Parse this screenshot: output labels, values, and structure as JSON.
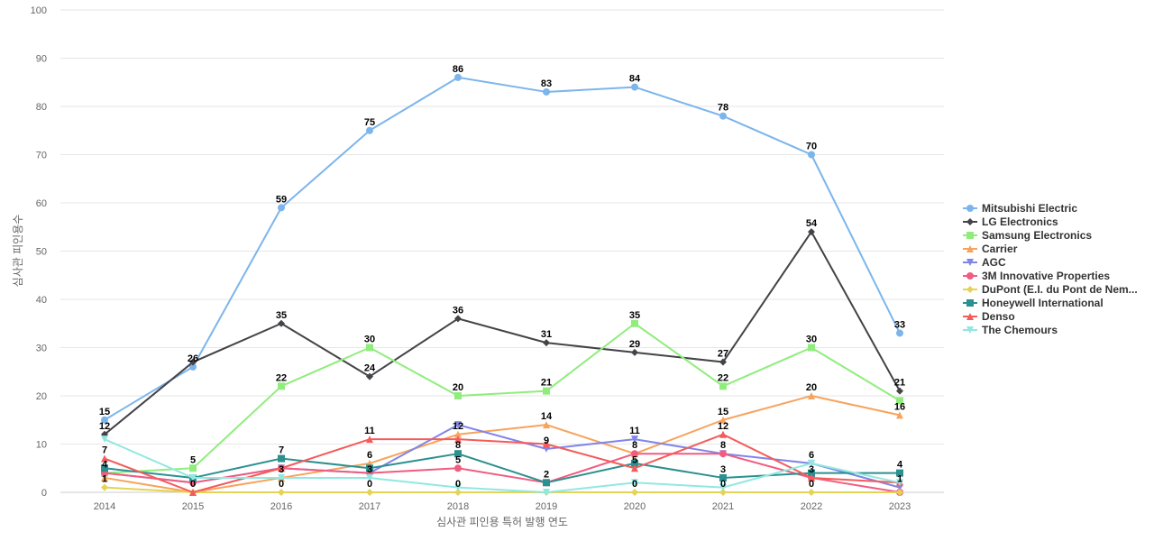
{
  "chart_data": {
    "type": "line",
    "xlabel": "심사관 피인용 특허 발행 연도",
    "ylabel": "심사관 피인용수",
    "categories": [
      "2014",
      "2015",
      "2016",
      "2017",
      "2018",
      "2019",
      "2020",
      "2021",
      "2022",
      "2023"
    ],
    "ylim": [
      0,
      100
    ],
    "yticks": [
      0,
      10,
      20,
      30,
      40,
      50,
      60,
      70,
      80,
      90,
      100
    ],
    "grid": true,
    "legend_position": "right",
    "series": [
      {
        "name": "Mitsubishi Electric",
        "color": "#7cb5ec",
        "marker": "circle",
        "values": [
          15,
          26,
          59,
          75,
          86,
          83,
          84,
          78,
          70,
          33
        ]
      },
      {
        "name": "LG Electronics",
        "color": "#434348",
        "marker": "diamond",
        "values": [
          12,
          27,
          35,
          24,
          36,
          31,
          29,
          27,
          54,
          21
        ]
      },
      {
        "name": "Samsung Electronics",
        "color": "#90ed7d",
        "marker": "square",
        "values": [
          4,
          5,
          22,
          30,
          20,
          21,
          35,
          22,
          30,
          19
        ]
      },
      {
        "name": "Carrier",
        "color": "#f7a35c",
        "marker": "triangle",
        "values": [
          3,
          0,
          3,
          6,
          12,
          14,
          8,
          15,
          20,
          16
        ]
      },
      {
        "name": "AGC",
        "color": "#8085e9",
        "marker": "triangle-down",
        "values": [
          4,
          2,
          5,
          4,
          14,
          9,
          11,
          8,
          6,
          1
        ]
      },
      {
        "name": "3M Innovative Properties",
        "color": "#f15c80",
        "marker": "circle",
        "values": [
          4,
          2,
          5,
          4,
          5,
          2,
          8,
          8,
          3,
          0
        ]
      },
      {
        "name": "DuPont (E.I. du Pont de Nem...",
        "color": "#e4d354",
        "marker": "diamond",
        "values": [
          1,
          0,
          0,
          0,
          0,
          0,
          0,
          0,
          0,
          0
        ]
      },
      {
        "name": "Honeywell International",
        "color": "#2b908f",
        "marker": "square",
        "values": [
          5,
          3,
          7,
          5,
          8,
          2,
          6,
          3,
          4,
          4
        ]
      },
      {
        "name": "Denso",
        "color": "#f45b5b",
        "marker": "triangle",
        "values": [
          7,
          0,
          5,
          11,
          11,
          10,
          5,
          12,
          3,
          2
        ]
      },
      {
        "name": "The Chemours",
        "color": "#91e8e1",
        "marker": "triangle-down",
        "values": [
          11,
          3,
          3,
          3,
          1,
          0,
          2,
          1,
          6,
          2
        ]
      }
    ],
    "data_labels": [
      {
        "x": "2014",
        "y": 15,
        "text": "15"
      },
      {
        "x": "2014",
        "y": 12,
        "text": "12"
      },
      {
        "x": "2014",
        "y": 7,
        "text": "7"
      },
      {
        "x": "2014",
        "y": 4,
        "text": "4"
      },
      {
        "x": "2014",
        "y": 1,
        "text": "1"
      },
      {
        "x": "2015",
        "y": 26,
        "text": "26"
      },
      {
        "x": "2015",
        "y": 5,
        "text": "5"
      },
      {
        "x": "2015",
        "y": 0,
        "text": "0"
      },
      {
        "x": "2016",
        "y": 59,
        "text": "59"
      },
      {
        "x": "2016",
        "y": 35,
        "text": "35"
      },
      {
        "x": "2016",
        "y": 22,
        "text": "22"
      },
      {
        "x": "2016",
        "y": 7,
        "text": "7"
      },
      {
        "x": "2016",
        "y": 3,
        "text": "3"
      },
      {
        "x": "2016",
        "y": 0,
        "text": "0"
      },
      {
        "x": "2017",
        "y": 75,
        "text": "75"
      },
      {
        "x": "2017",
        "y": 30,
        "text": "30"
      },
      {
        "x": "2017",
        "y": 24,
        "text": "24"
      },
      {
        "x": "2017",
        "y": 11,
        "text": "11"
      },
      {
        "x": "2017",
        "y": 6,
        "text": "6"
      },
      {
        "x": "2017",
        "y": 3,
        "text": "3"
      },
      {
        "x": "2017",
        "y": 0,
        "text": "0"
      },
      {
        "x": "2018",
        "y": 86,
        "text": "86"
      },
      {
        "x": "2018",
        "y": 36,
        "text": "36"
      },
      {
        "x": "2018",
        "y": 20,
        "text": "20"
      },
      {
        "x": "2018",
        "y": 12,
        "text": "12"
      },
      {
        "x": "2018",
        "y": 8,
        "text": "8"
      },
      {
        "x": "2018",
        "y": 5,
        "text": "5"
      },
      {
        "x": "2018",
        "y": 0,
        "text": "0"
      },
      {
        "x": "2019",
        "y": 83,
        "text": "83"
      },
      {
        "x": "2019",
        "y": 31,
        "text": "31"
      },
      {
        "x": "2019",
        "y": 21,
        "text": "21"
      },
      {
        "x": "2019",
        "y": 14,
        "text": "14"
      },
      {
        "x": "2019",
        "y": 9,
        "text": "9"
      },
      {
        "x": "2019",
        "y": 2,
        "text": "2"
      },
      {
        "x": "2020",
        "y": 84,
        "text": "84"
      },
      {
        "x": "2020",
        "y": 35,
        "text": "35"
      },
      {
        "x": "2020",
        "y": 29,
        "text": "29"
      },
      {
        "x": "2020",
        "y": 11,
        "text": "11"
      },
      {
        "x": "2020",
        "y": 8,
        "text": "8"
      },
      {
        "x": "2020",
        "y": 5,
        "text": "5"
      },
      {
        "x": "2020",
        "y": 0,
        "text": "0"
      },
      {
        "x": "2021",
        "y": 78,
        "text": "78"
      },
      {
        "x": "2021",
        "y": 27,
        "text": "27"
      },
      {
        "x": "2021",
        "y": 22,
        "text": "22"
      },
      {
        "x": "2021",
        "y": 15,
        "text": "15"
      },
      {
        "x": "2021",
        "y": 12,
        "text": "12"
      },
      {
        "x": "2021",
        "y": 8,
        "text": "8"
      },
      {
        "x": "2021",
        "y": 3,
        "text": "3"
      },
      {
        "x": "2021",
        "y": 0,
        "text": "0"
      },
      {
        "x": "2022",
        "y": 70,
        "text": "70"
      },
      {
        "x": "2022",
        "y": 54,
        "text": "54"
      },
      {
        "x": "2022",
        "y": 30,
        "text": "30"
      },
      {
        "x": "2022",
        "y": 20,
        "text": "20"
      },
      {
        "x": "2022",
        "y": 6,
        "text": "6"
      },
      {
        "x": "2022",
        "y": 3,
        "text": "3"
      },
      {
        "x": "2022",
        "y": 0,
        "text": "0"
      },
      {
        "x": "2023",
        "y": 33,
        "text": "33"
      },
      {
        "x": "2023",
        "y": 21,
        "text": "21"
      },
      {
        "x": "2023",
        "y": 16,
        "text": "16"
      },
      {
        "x": "2023",
        "y": 4,
        "text": "4"
      },
      {
        "x": "2023",
        "y": 1,
        "text": "1"
      }
    ]
  }
}
